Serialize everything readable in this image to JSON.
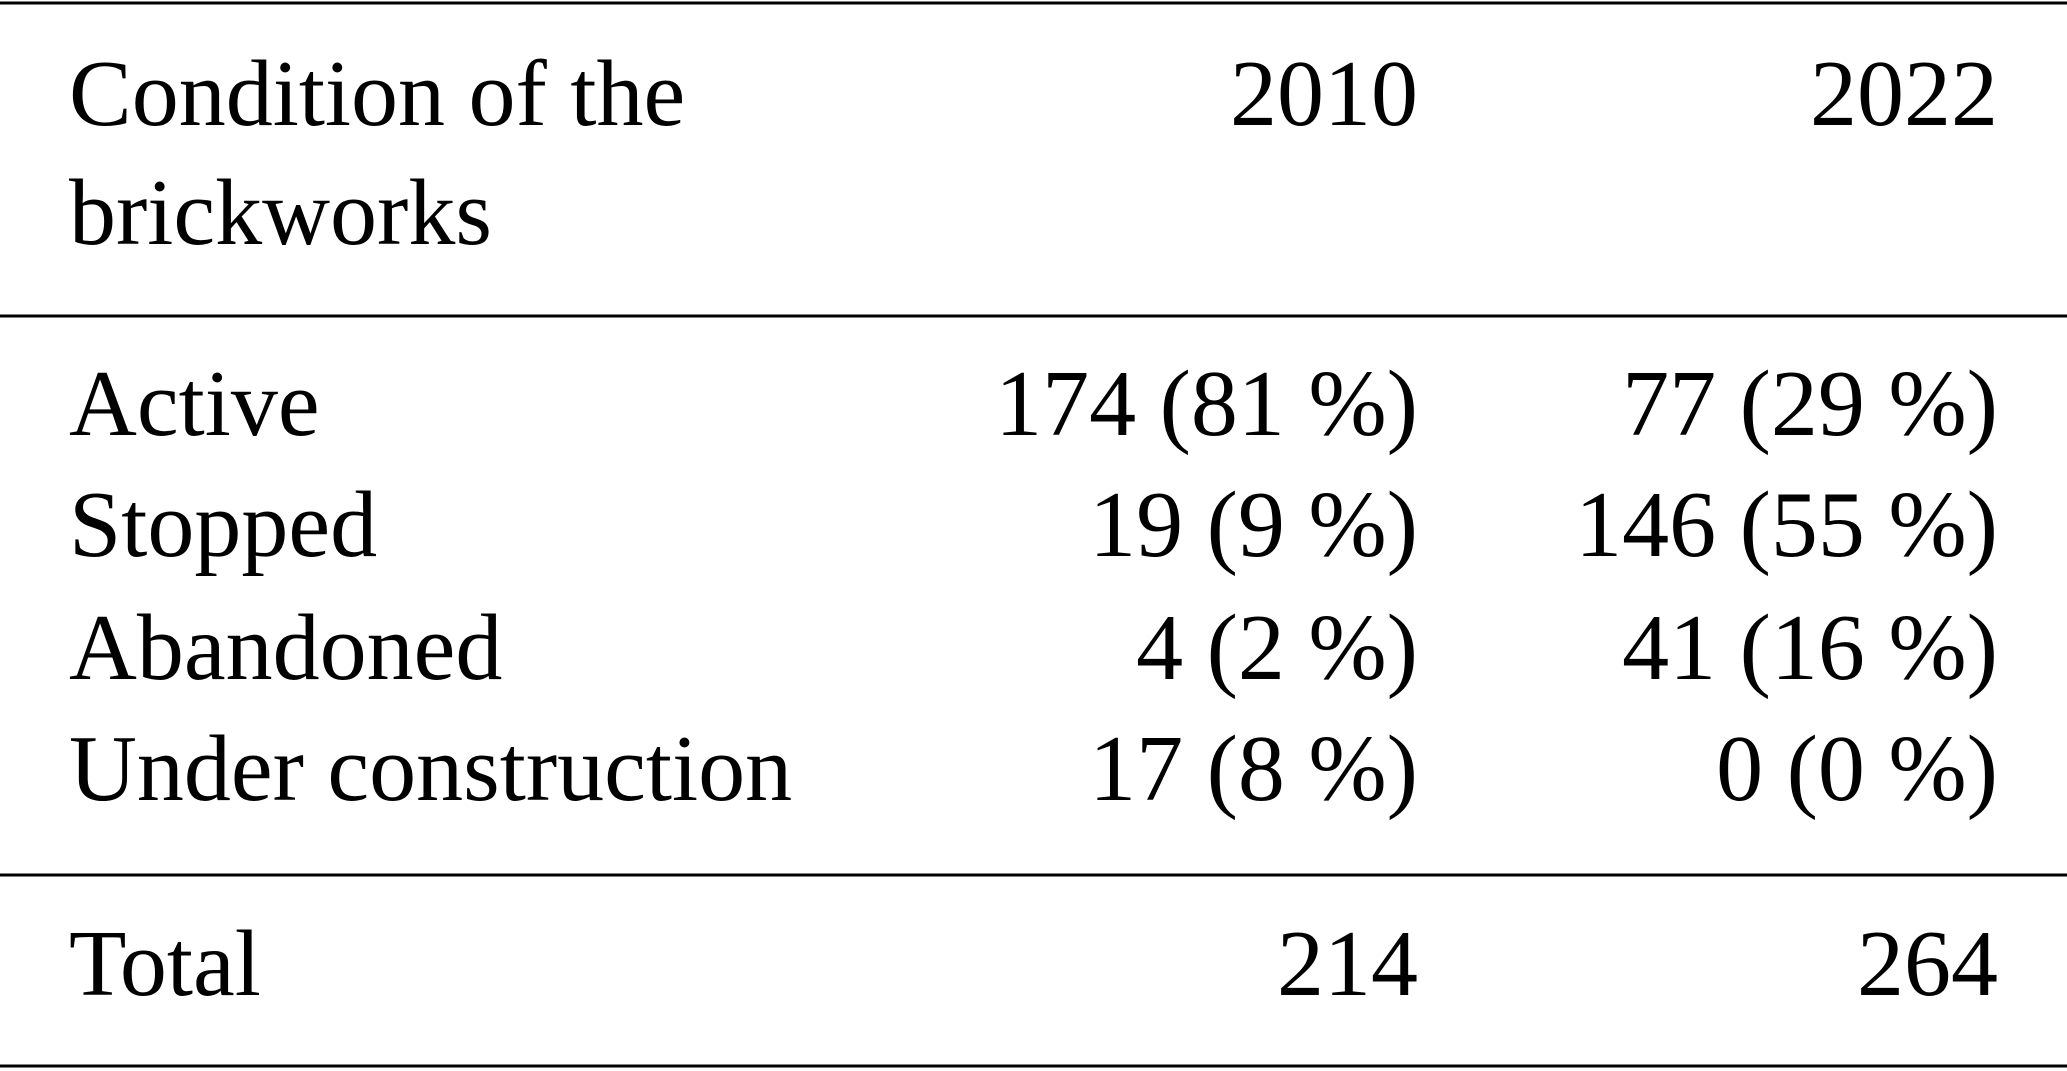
{
  "table": {
    "header": [
      "Condition of the brickworks",
      "2010",
      "2022"
    ],
    "header_lines": [
      "Condition of the",
      "brickworks"
    ],
    "rows": [
      [
        "Active",
        "174 (81 %)",
        "77 (29 %)"
      ],
      [
        "Stopped",
        "19 (9 %)",
        "146 (55 %)"
      ],
      [
        "Abandoned",
        "4 (2 %)",
        "41 (16 %)"
      ],
      [
        "Under construction",
        "17 (8 %)",
        "0 (0 %)"
      ]
    ],
    "total": [
      "Total",
      "214",
      "264"
    ]
  }
}
